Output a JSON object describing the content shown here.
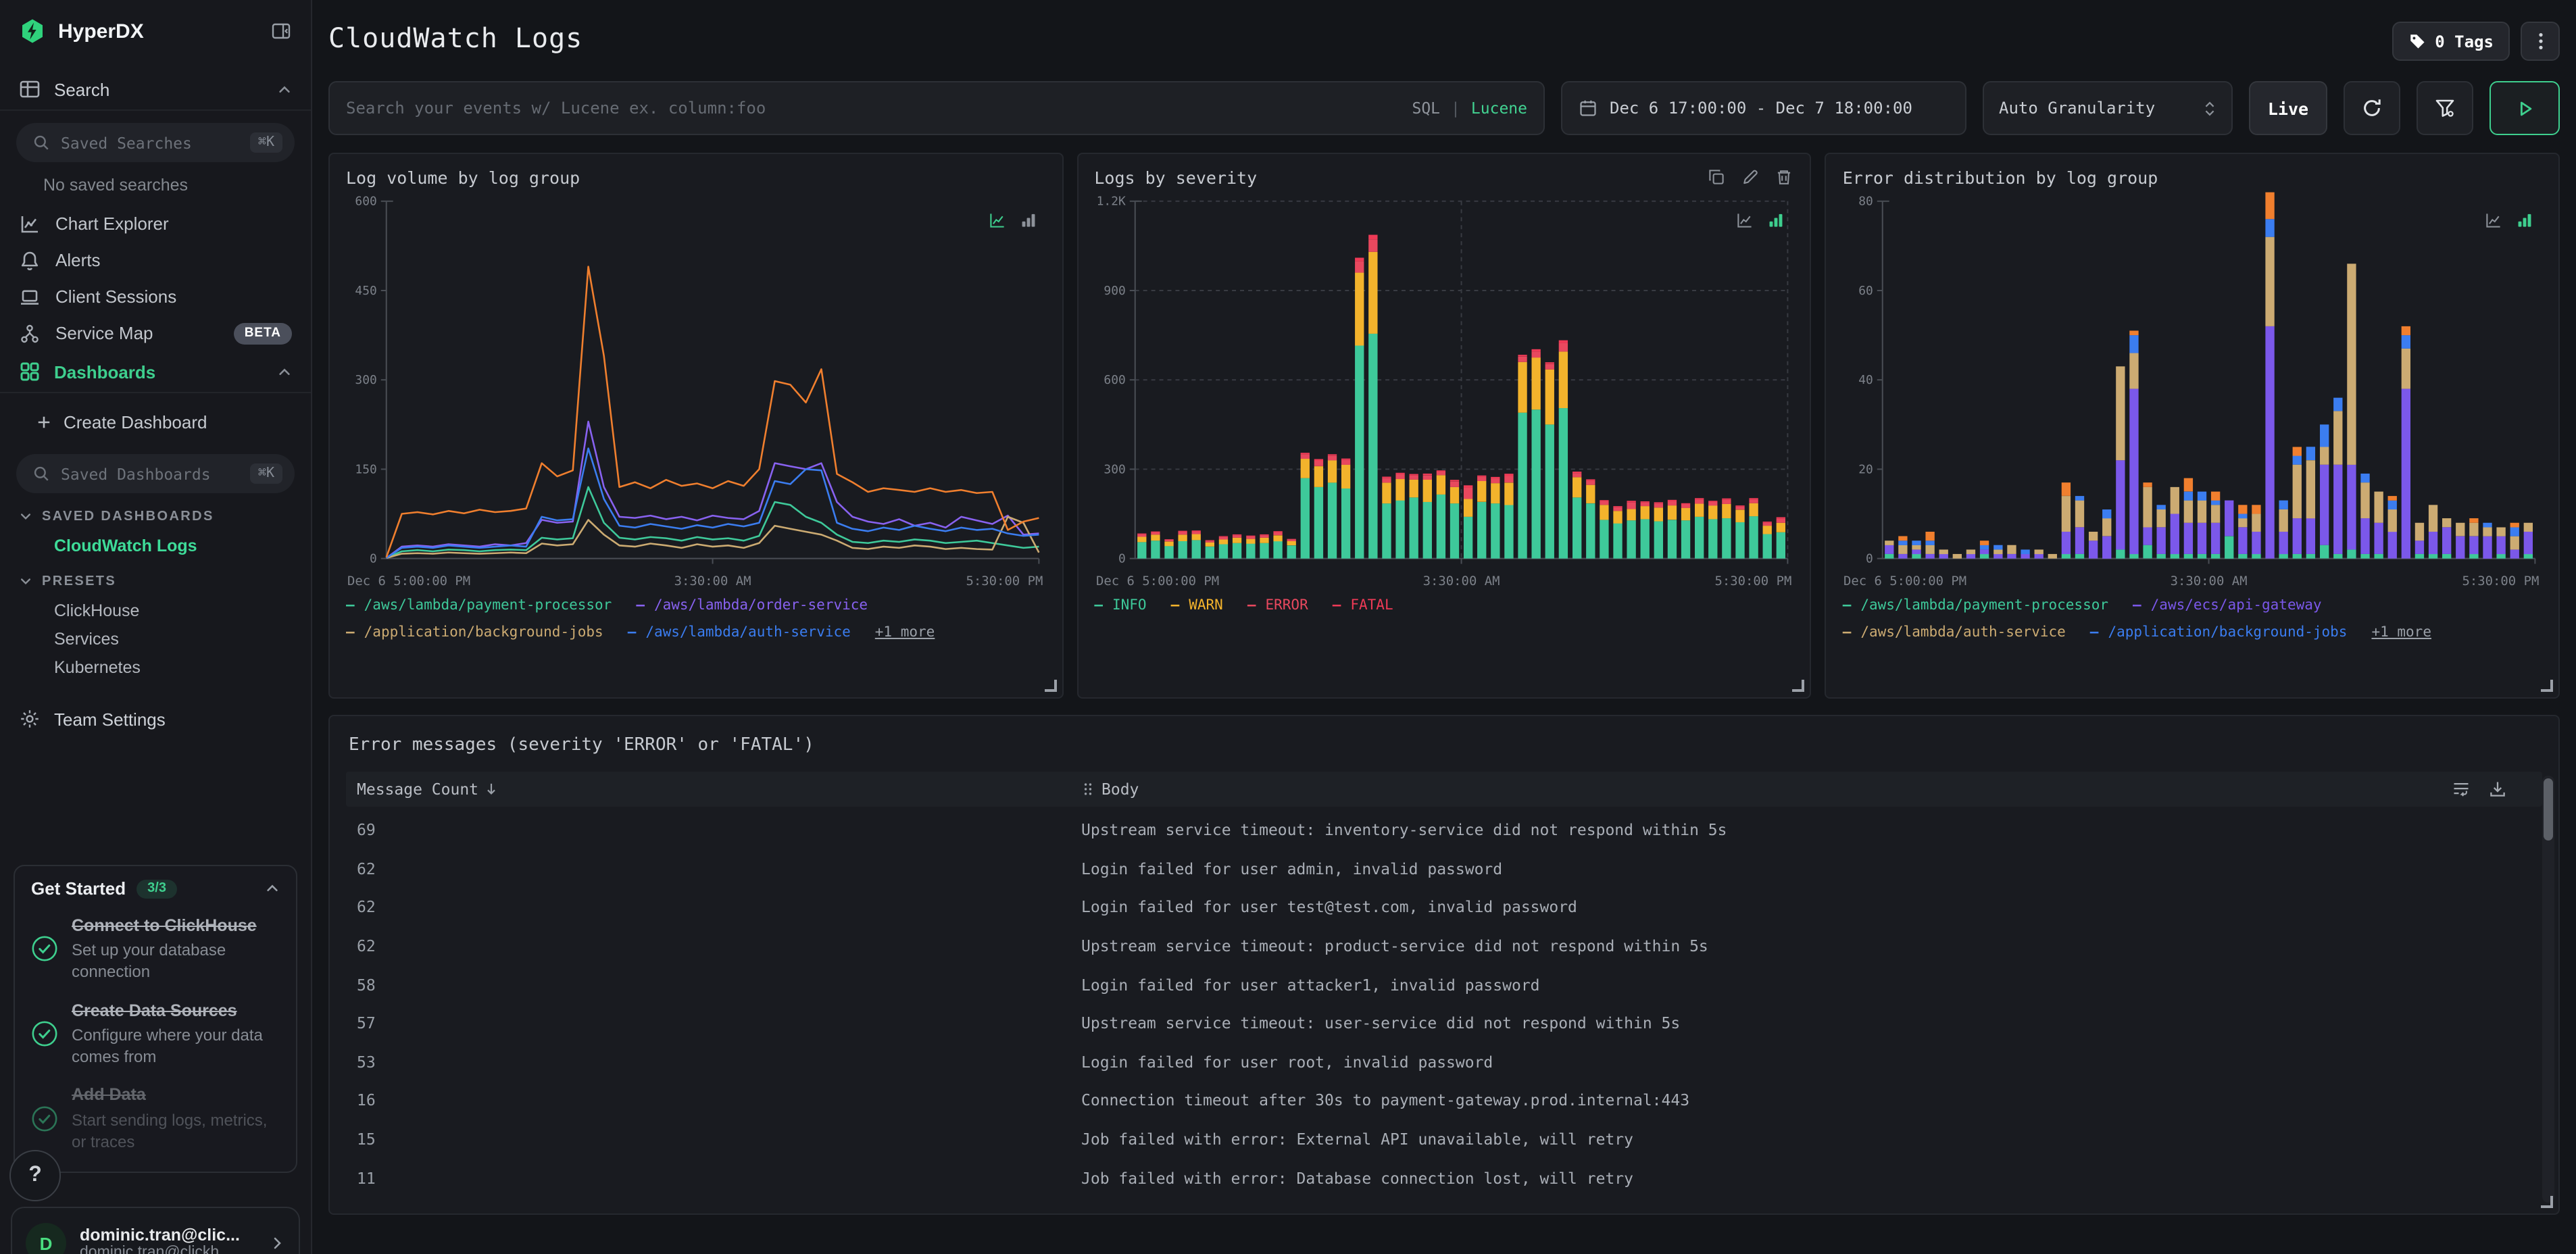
{
  "sidebar": {
    "logo": "HyperDX",
    "logo_icon": "hyperdx-bolt-hexagon",
    "collapse_icon": "panel-collapse",
    "search_section": {
      "label": "Search",
      "icon": "table-icon",
      "input_placeholder": "Saved Searches",
      "shortcut": "⌘K",
      "empty": "No saved searches"
    },
    "nav_items": [
      {
        "label": "Chart Explorer",
        "icon": "chart-line-icon"
      },
      {
        "label": "Alerts",
        "icon": "bell-icon"
      },
      {
        "label": "Client Sessions",
        "icon": "laptop-icon"
      },
      {
        "label": "Service Map",
        "icon": "service-map-icon",
        "badge": "BETA"
      }
    ],
    "dashboards_section": {
      "label": "Dashboards",
      "icon": "grid-icon",
      "create_label": "Create Dashboard",
      "input_placeholder": "Saved Dashboards",
      "shortcut": "⌘K",
      "groups": [
        {
          "label": "SAVED DASHBOARDS",
          "items": [
            {
              "label": "CloudWatch Logs",
              "active": true
            }
          ]
        },
        {
          "label": "PRESETS",
          "items": [
            {
              "label": "ClickHouse"
            },
            {
              "label": "Services"
            },
            {
              "label": "Kubernetes"
            }
          ]
        }
      ]
    },
    "team_settings_label": "Team Settings",
    "get_started": {
      "title": "Get Started",
      "badge": "3/3",
      "steps": [
        {
          "title": "Connect to ClickHouse",
          "desc": "Set up your database connection",
          "done": true
        },
        {
          "title": "Create Data Sources",
          "desc": "Configure where your data comes from",
          "done": true
        },
        {
          "title": "Add Data",
          "desc": "Start sending logs, metrics, or traces",
          "done": true,
          "faded": true
        }
      ]
    },
    "help_label": "?",
    "user": {
      "initial": "D",
      "name": "dominic.tran@clic...",
      "email": "dominic.tran@clickh..."
    }
  },
  "header": {
    "title": "CloudWatch Logs",
    "tags_label": "0 Tags"
  },
  "toolbar": {
    "search_placeholder": "Search your events w/ Lucene ex. column:foo",
    "sql_label": "SQL",
    "divider": "|",
    "lucene_label": "Lucene",
    "date_range": "Dec 6 17:00:00 - Dec 7 18:00:00",
    "granularity": "Auto Granularity",
    "live_label": "Live"
  },
  "chart_data": [
    {
      "type": "line",
      "title": "Log volume by log group",
      "ylim": [
        0,
        600
      ],
      "yticks": [
        {
          "v": 600,
          "label": "600"
        },
        {
          "v": 450,
          "label": "450"
        },
        {
          "v": 300,
          "label": "300"
        },
        {
          "v": 150,
          "label": "150"
        },
        {
          "v": 0,
          "label": "0"
        }
      ],
      "xticks": [
        "Dec 6 5:00:00 PM",
        "3:30:00 AM",
        "5:30:00 PM"
      ],
      "grid": false,
      "mode": "line",
      "legend_more": "+1 more",
      "series": [
        {
          "name": "/aws/lambda/payment-processor",
          "color": "#3ec99a",
          "values": [
            1,
            12,
            14,
            12,
            15,
            14,
            12,
            14,
            15,
            14,
            35,
            32,
            34,
            120,
            60,
            35,
            32,
            36,
            34,
            30,
            36,
            32,
            34,
            30,
            38,
            95,
            90,
            70,
            60,
            40,
            28,
            26,
            30,
            28,
            32,
            30,
            26,
            28,
            30,
            26,
            22,
            18,
            20
          ]
        },
        {
          "name": "/aws/lambda/order-service",
          "color": "#8862f0",
          "values": [
            1,
            20,
            22,
            20,
            24,
            22,
            20,
            24,
            22,
            26,
            65,
            60,
            62,
            230,
            120,
            70,
            68,
            72,
            66,
            70,
            64,
            72,
            68,
            66,
            80,
            160,
            155,
            150,
            160,
            95,
            70,
            62,
            58,
            66,
            55,
            60,
            52,
            70,
            64,
            58,
            72,
            40,
            42
          ]
        },
        {
          "name": "/application/background-jobs",
          "color": "#ccab72",
          "values": [
            1,
            8,
            9,
            8,
            10,
            9,
            8,
            9,
            10,
            9,
            25,
            22,
            24,
            65,
            40,
            22,
            20,
            25,
            22,
            18,
            24,
            20,
            22,
            18,
            26,
            55,
            50,
            45,
            40,
            30,
            18,
            16,
            20,
            18,
            22,
            20,
            16,
            18,
            16,
            15,
            70,
            60,
            10
          ]
        },
        {
          "name": "/aws/lambda/auth-service",
          "color": "#3b7df0",
          "values": [
            1,
            18,
            20,
            18,
            22,
            20,
            18,
            20,
            22,
            20,
            70,
            64,
            66,
            185,
            100,
            55,
            52,
            58,
            54,
            50,
            56,
            52,
            58,
            54,
            60,
            130,
            125,
            150,
            148,
            60,
            50,
            46,
            52,
            48,
            55,
            50,
            46,
            52,
            48,
            50,
            42,
            38,
            40
          ]
        },
        {
          "name": "/aws/ecs/api-gateway",
          "color": "#f07f2e",
          "legend": false,
          "values": [
            2,
            75,
            78,
            74,
            80,
            76,
            82,
            78,
            80,
            84,
            160,
            138,
            148,
            490,
            340,
            120,
            128,
            118,
            132,
            122,
            126,
            118,
            130,
            122,
            150,
            298,
            292,
            262,
            318,
            142,
            128,
            112,
            118,
            115,
            112,
            118,
            112,
            115,
            110,
            112,
            48,
            62,
            68
          ]
        }
      ]
    },
    {
      "type": "bar",
      "title": "Logs by severity",
      "ylim": [
        0,
        1200
      ],
      "yticks": [
        {
          "v": 1200,
          "label": "1.2K"
        },
        {
          "v": 900,
          "label": "900"
        },
        {
          "v": 600,
          "label": "600"
        },
        {
          "v": 300,
          "label": "300"
        },
        {
          "v": 0,
          "label": "0"
        }
      ],
      "xticks": [
        "Dec 6 5:00:00 PM",
        "3:30:00 AM",
        "5:30:00 PM"
      ],
      "grid": true,
      "mode": "bar",
      "action_icons": [
        "duplicate-icon",
        "edit-icon",
        "delete-icon"
      ],
      "series": [
        {
          "name": "INFO",
          "color": "#3ec99a",
          "values": [
            55,
            60,
            42,
            58,
            62,
            40,
            48,
            52,
            50,
            52,
            58,
            44,
            270,
            240,
            255,
            235,
            715,
            755,
            185,
            195,
            205,
            190,
            215,
            185,
            140,
            190,
            185,
            180,
            490,
            500,
            450,
            505,
            205,
            185,
            130,
            118,
            128,
            132,
            125,
            130,
            128,
            140,
            132,
            135,
            122,
            142,
            82,
            88
          ]
        },
        {
          "name": "WARN",
          "color": "#f3b32c",
          "values": [
            18,
            20,
            15,
            22,
            20,
            14,
            16,
            18,
            16,
            18,
            20,
            14,
            65,
            70,
            75,
            80,
            245,
            275,
            70,
            72,
            60,
            75,
            65,
            55,
            60,
            70,
            68,
            75,
            170,
            175,
            185,
            190,
            68,
            62,
            50,
            42,
            38,
            44,
            46,
            48,
            42,
            44,
            46,
            48,
            42,
            44,
            28,
            32
          ]
        },
        {
          "name": "ERROR",
          "color": "#e8485e",
          "values": [
            8,
            8,
            6,
            10,
            8,
            6,
            8,
            8,
            8,
            8,
            10,
            6,
            15,
            18,
            15,
            16,
            38,
            42,
            15,
            16,
            14,
            15,
            12,
            18,
            38,
            14,
            16,
            22,
            18,
            20,
            18,
            28,
            14,
            14,
            12,
            12,
            22,
            12,
            14,
            14,
            12,
            14,
            12,
            14,
            10,
            12,
            10,
            14
          ]
        },
        {
          "name": "FATAL",
          "color": "#ee3a56",
          "values": [
            3,
            3,
            2,
            3,
            4,
            2,
            3,
            3,
            3,
            3,
            4,
            2,
            5,
            6,
            5,
            5,
            12,
            15,
            5,
            5,
            5,
            5,
            4,
            6,
            8,
            5,
            5,
            8,
            6,
            8,
            6,
            10,
            5,
            5,
            4,
            4,
            6,
            4,
            4,
            5,
            4,
            5,
            4,
            5,
            4,
            5,
            4,
            5
          ]
        }
      ]
    },
    {
      "type": "bar",
      "title": "Error distribution by log group",
      "ylim": [
        0,
        80
      ],
      "yticks": [
        {
          "v": 80,
          "label": "80"
        },
        {
          "v": 60,
          "label": "60"
        },
        {
          "v": 40,
          "label": "40"
        },
        {
          "v": 20,
          "label": "20"
        },
        {
          "v": 0,
          "label": "0"
        }
      ],
      "xticks": [
        "Dec 6 5:00:00 PM",
        "3:30:00 AM",
        "5:30:00 PM"
      ],
      "grid": false,
      "mode": "bar",
      "legend_more": "+1 more",
      "series": [
        {
          "name": "/aws/lambda/payment-processor",
          "color": "#3ec99a",
          "values": [
            1,
            0,
            1,
            0,
            0,
            0,
            0,
            1,
            0,
            0,
            0,
            0,
            0,
            1,
            1,
            0,
            0,
            2,
            1,
            3,
            1,
            1,
            1,
            1,
            1,
            5,
            1,
            1,
            0,
            1,
            1,
            1,
            3,
            1,
            2,
            1,
            1,
            0,
            0,
            1,
            1,
            1,
            0,
            1,
            0,
            1,
            0,
            1
          ]
        },
        {
          "name": "/aws/ecs/api-gateway",
          "color": "#7b58ea",
          "values": [
            2,
            1,
            1,
            1,
            1,
            0,
            1,
            1,
            1,
            1,
            1,
            1,
            0,
            5,
            6,
            4,
            5,
            20,
            37,
            4,
            6,
            9,
            7,
            7,
            7,
            8,
            6,
            5,
            52,
            5,
            8,
            8,
            18,
            20,
            19,
            8,
            7,
            6,
            38,
            3,
            5,
            6,
            5,
            4,
            5,
            4,
            2,
            5
          ]
        },
        {
          "name": "/aws/lambda/auth-service",
          "color": "#ccab72",
          "values": [
            1,
            2,
            1,
            2,
            1,
            1,
            1,
            0,
            1,
            2,
            0,
            1,
            1,
            8,
            6,
            2,
            4,
            21,
            8,
            9,
            4,
            6,
            5,
            5,
            4,
            0,
            2,
            4,
            20,
            5,
            12,
            13,
            4,
            12,
            45,
            8,
            7,
            5,
            9,
            4,
            6,
            2,
            3,
            3,
            2,
            2,
            3,
            2
          ]
        },
        {
          "name": "/application/background-jobs",
          "color": "#3b7df0",
          "values": [
            0,
            1,
            1,
            1,
            0,
            0,
            0,
            1,
            1,
            0,
            1,
            0,
            0,
            0,
            1,
            0,
            2,
            0,
            4,
            0,
            1,
            0,
            2,
            2,
            1,
            0,
            1,
            0,
            4,
            2,
            2,
            3,
            5,
            3,
            0,
            2,
            0,
            2,
            3,
            0,
            0,
            0,
            0,
            0,
            1,
            0,
            2,
            0
          ]
        },
        {
          "name": "/aws/lambda/order-service",
          "color": "#f07f2e",
          "legend": false,
          "values": [
            0,
            1,
            0,
            2,
            0,
            0,
            0,
            1,
            0,
            0,
            0,
            0,
            0,
            3,
            0,
            0,
            0,
            0,
            1,
            1,
            0,
            0,
            3,
            0,
            2,
            0,
            2,
            2,
            6,
            0,
            2,
            0,
            0,
            0,
            0,
            0,
            0,
            1,
            2,
            0,
            0,
            0,
            0,
            1,
            0,
            0,
            1,
            0
          ]
        }
      ]
    }
  ],
  "table": {
    "title": "Error messages (severity 'ERROR' or 'FATAL')",
    "columns": [
      {
        "label": "Message Count",
        "sort": "desc"
      },
      {
        "label": "Body"
      }
    ],
    "header_icons": [
      "wrap-text-icon",
      "download-icon"
    ],
    "rows": [
      {
        "count": "69",
        "body": "Upstream service timeout: inventory-service did not respond within 5s"
      },
      {
        "count": "62",
        "body": "Login failed for user admin, invalid password"
      },
      {
        "count": "62",
        "body": "Login failed for user test@test.com, invalid password"
      },
      {
        "count": "62",
        "body": "Upstream service timeout: product-service did not respond within 5s"
      },
      {
        "count": "58",
        "body": "Login failed for user attacker1, invalid password"
      },
      {
        "count": "57",
        "body": "Upstream service timeout: user-service did not respond within 5s"
      },
      {
        "count": "53",
        "body": "Login failed for user root, invalid password"
      },
      {
        "count": "16",
        "body": "Connection timeout after 30s to payment-gateway.prod.internal:443"
      },
      {
        "count": "15",
        "body": "Job failed with error: External API unavailable, will retry"
      },
      {
        "count": "11",
        "body": "Job failed with error: Database connection lost, will retry"
      }
    ]
  }
}
